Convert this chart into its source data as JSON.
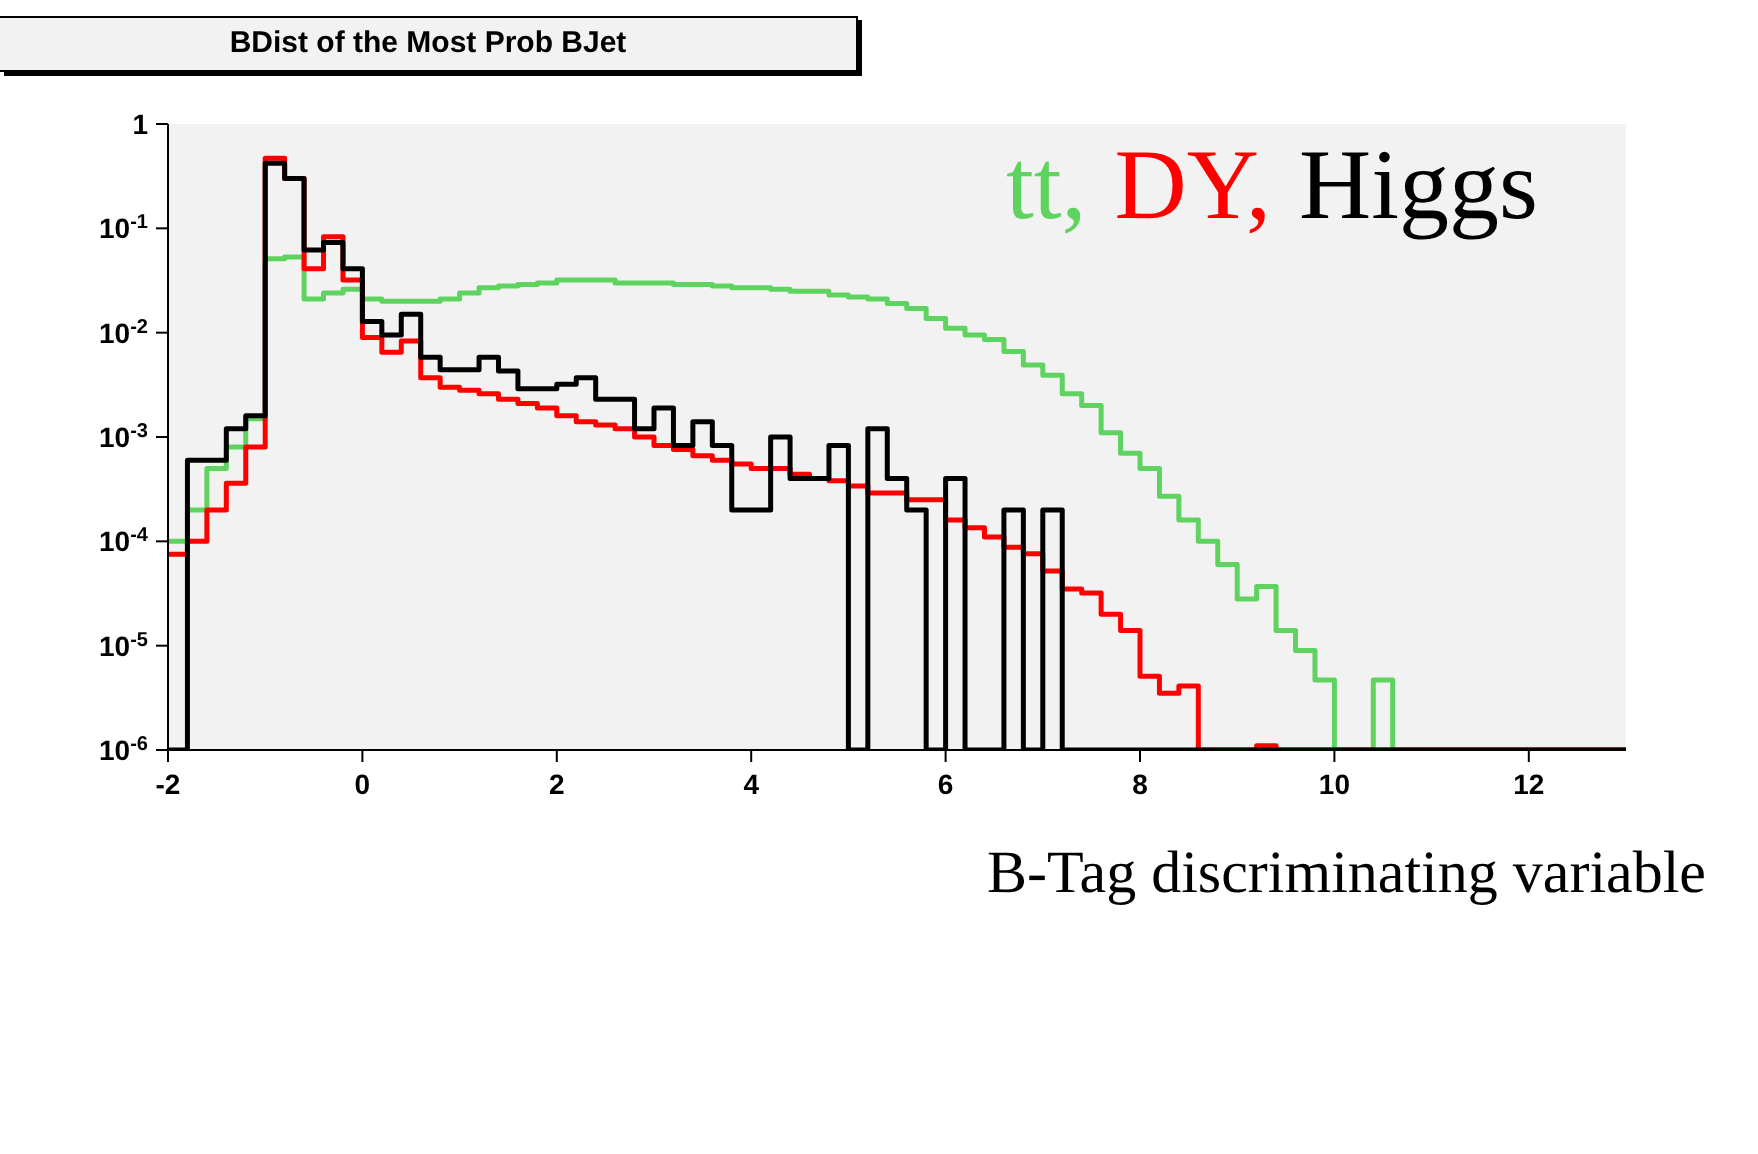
{
  "chart_data": {
    "type": "histogram",
    "title": "BDist of the Most Prob BJet",
    "xlabel": "B-Tag discriminating variable",
    "bins": [
      -2,
      -1.8,
      -1.6,
      -1.4,
      -1.2,
      -1,
      -0.8,
      -0.6,
      -0.4,
      -0.2,
      0,
      0.2,
      0.4,
      0.6,
      0.8,
      1,
      1.2,
      1.4,
      1.6,
      1.8,
      2,
      2.2,
      2.4,
      2.6,
      2.8,
      3,
      3.2,
      3.4,
      3.6,
      3.8,
      4,
      4.2,
      4.4,
      4.6,
      4.8,
      5,
      5.2,
      5.4,
      5.6,
      5.8,
      6,
      6.2,
      6.4,
      6.6,
      6.8,
      7,
      7.2,
      7.4,
      7.6,
      7.8,
      8,
      8.2,
      8.4,
      8.6,
      8.8,
      9,
      9.2,
      9.4,
      9.6,
      9.8,
      10,
      10.2,
      10.4,
      10.6,
      10.8,
      11,
      11.2,
      11.4,
      11.6,
      11.8,
      12,
      12.2,
      12.4,
      12.6,
      12.8,
      13
    ],
    "series": [
      {
        "name": "tt,",
        "color": "#5fd35f",
        "values": [
          0.0001,
          0.0002,
          0.0005,
          0.0008,
          0.0015,
          0.051,
          0.053,
          0.021,
          0.024,
          0.026,
          0.021,
          0.02,
          0.02,
          0.02,
          0.021,
          0.024,
          0.027,
          0.028,
          0.029,
          0.03,
          0.032,
          0.032,
          0.032,
          0.03,
          0.03,
          0.03,
          0.029,
          0.029,
          0.028,
          0.027,
          0.027,
          0.026,
          0.025,
          0.025,
          0.023,
          0.022,
          0.021,
          0.019,
          0.017,
          0.0137,
          0.011,
          0.0095,
          0.0086,
          0.0066,
          0.0049,
          0.0039,
          0.0026,
          0.002,
          0.0011,
          0.0007,
          0.0005,
          0.00027,
          0.00016,
          0.0001,
          6e-05,
          2.8e-05,
          3.7e-05,
          1.4e-05,
          9e-06,
          4.7e-06,
          null,
          null,
          4.7e-06,
          null,
          null,
          null,
          null,
          null,
          null,
          null,
          null,
          null,
          null,
          null,
          null
        ]
      },
      {
        "name": "DY,",
        "color": "#ff0000",
        "values": [
          7.5e-05,
          0.0001,
          0.0002,
          0.00036,
          0.0008,
          0.47,
          0.3,
          0.041,
          0.083,
          0.032,
          0.009,
          0.0065,
          0.0083,
          0.0037,
          0.003,
          0.0028,
          0.0026,
          0.0023,
          0.0021,
          0.0019,
          0.0016,
          0.0014,
          0.0013,
          0.0012,
          0.001,
          0.00083,
          0.00076,
          0.00066,
          0.0006,
          0.00055,
          0.0005,
          0.0005,
          0.00044,
          0.0004,
          0.00038,
          0.00034,
          0.00029,
          0.00029,
          0.00025,
          0.00025,
          0.00016,
          0.000135,
          0.00011,
          8.8e-05,
          7.6e-05,
          5.2e-05,
          3.5e-05,
          3.2e-05,
          2e-05,
          1.4e-05,
          5.1e-06,
          3.5e-06,
          4.1e-06,
          null,
          null,
          null,
          1.1e-06,
          null,
          null,
          null,
          null,
          null,
          null,
          null,
          null,
          null,
          null,
          null,
          null,
          null,
          null,
          null,
          null,
          null,
          null
        ]
      },
      {
        "name": "Higgs",
        "color": "#000000",
        "values": [
          null,
          0.0006,
          0.0006,
          0.0012,
          0.0016,
          0.42,
          0.3,
          0.062,
          0.073,
          0.041,
          0.0128,
          0.0095,
          0.015,
          0.0058,
          0.0044,
          0.0044,
          0.0058,
          0.0043,
          0.0029,
          0.0029,
          0.0032,
          0.0037,
          0.0023,
          0.0023,
          0.0012,
          0.0019,
          0.00083,
          0.0014,
          0.00083,
          0.0002,
          0.0002,
          0.001,
          0.0004,
          0.0004,
          0.00083,
          null,
          0.0012,
          0.0004,
          0.0002,
          null,
          0.0004,
          null,
          null,
          0.0002,
          null,
          0.0002,
          null,
          null,
          null,
          null,
          null,
          null,
          null,
          null,
          null,
          null,
          null,
          null,
          null,
          null,
          null,
          null,
          null,
          null,
          null,
          null,
          null,
          null,
          null,
          null,
          null,
          null,
          null,
          null,
          null
        ]
      }
    ],
    "xlim": [
      -2,
      13
    ],
    "xticks": [
      -2,
      0,
      2,
      4,
      6,
      8,
      10,
      12
    ],
    "ylim": [
      1e-06,
      1
    ],
    "yticks": [
      {
        "value": 1e-06,
        "label": "10$^{-6}$"
      },
      {
        "value": 1e-05,
        "label": "10$^{-5}$"
      },
      {
        "value": 0.0001,
        "label": "10$^{-4}$"
      },
      {
        "value": 0.001,
        "label": "10$^{-3}$"
      },
      {
        "value": 0.01,
        "label": "10$^{-2}$"
      },
      {
        "value": 0.1,
        "label": "10$^{-1}$"
      },
      1
    ],
    "log": "y",
    "legend": "top right"
  }
}
